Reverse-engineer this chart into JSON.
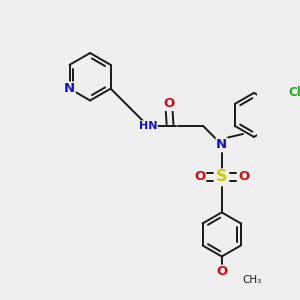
{
  "bg_color": "#efefef",
  "bond_color": "#1a1a1a",
  "bond_lw": 1.4,
  "atom_colors": {
    "N": "#1010cc",
    "O": "#cc1010",
    "S": "#cccc00",
    "Cl": "#22aa22",
    "H": "#888888",
    "C": "#1a1a1a"
  },
  "font_size": 8.5,
  "fig_size": [
    3.0,
    3.0
  ],
  "dpi": 100
}
